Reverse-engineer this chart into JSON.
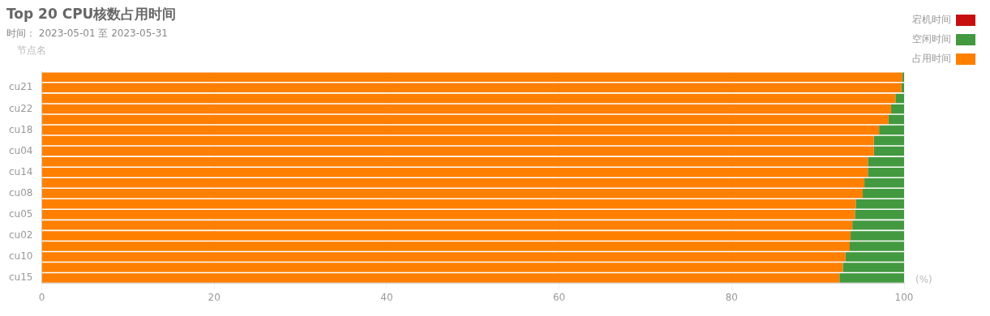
{
  "chart_data": {
    "type": "bar",
    "orientation": "horizontal",
    "stacked": true,
    "title": "Top 20 CPU核数占用时间",
    "subtitle": "时间： 2023-05-01 至 2023-05-31",
    "ylabel": "节点名",
    "xlabel": "(%)",
    "categories": [
      null,
      "cu21",
      null,
      "cu22",
      null,
      "cu18",
      null,
      "cu04",
      null,
      "cu14",
      null,
      "cu08",
      null,
      "cu05",
      null,
      "cu02",
      null,
      "cu10",
      null,
      "cu15"
    ],
    "series": [
      {
        "name": "占用时间",
        "color": "#ff7f00",
        "values": [
          99.8,
          99.7,
          99.0,
          98.5,
          98.2,
          97.1,
          96.5,
          96.5,
          95.8,
          95.8,
          95.4,
          95.2,
          94.4,
          94.3,
          94.0,
          93.8,
          93.7,
          93.2,
          92.9,
          92.5
        ]
      },
      {
        "name": "空闲时间",
        "color": "#43993f",
        "values": [
          0.2,
          0.3,
          1.0,
          1.5,
          1.8,
          2.9,
          3.5,
          3.5,
          4.2,
          4.2,
          4.6,
          4.8,
          5.6,
          5.7,
          6.0,
          6.2,
          6.3,
          6.8,
          7.1,
          7.5
        ]
      },
      {
        "name": "宕机时间",
        "color": "#c80f0f",
        "values": [
          0,
          0,
          0,
          0,
          0,
          0,
          0,
          0,
          0,
          0,
          0,
          0,
          0,
          0,
          0,
          0,
          0,
          0,
          0,
          0
        ]
      }
    ],
    "xlim": [
      0,
      100
    ],
    "xticks": [
      0,
      20,
      40,
      60,
      80,
      100
    ],
    "grid": "x",
    "legend": "right"
  }
}
